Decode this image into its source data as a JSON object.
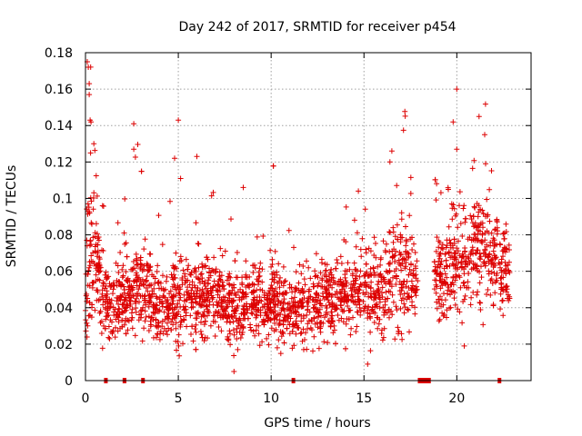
{
  "chart_data": {
    "type": "scatter",
    "title": "Day 242 of 2017, SRMTID for receiver p454",
    "xlabel": "GPS time / hours",
    "ylabel": "SRMTID / TECUs",
    "xlim": [
      0,
      24
    ],
    "ylim": [
      0,
      0.18
    ],
    "grid": true,
    "marker": "+",
    "color": "#dd0000",
    "x_ticks": [
      {
        "value": 0,
        "label": "0"
      },
      {
        "value": 5,
        "label": "5"
      },
      {
        "value": 10,
        "label": "10"
      },
      {
        "value": 15,
        "label": "15"
      },
      {
        "value": 20,
        "label": "20"
      }
    ],
    "y_ticks": [
      {
        "value": 0,
        "label": "0"
      },
      {
        "value": 0.02,
        "label": "0.02"
      },
      {
        "value": 0.04,
        "label": "0.04"
      },
      {
        "value": 0.06,
        "label": "0.06"
      },
      {
        "value": 0.08,
        "label": "0.08"
      },
      {
        "value": 0.1,
        "label": "0.1"
      },
      {
        "value": 0.12,
        "label": "0.12"
      },
      {
        "value": 0.14,
        "label": "0.14"
      },
      {
        "value": 0.16,
        "label": "0.16"
      },
      {
        "value": 0.18,
        "label": "0.18"
      }
    ],
    "envelope": {
      "description": "Approximate per-time distribution of points: center (median) and spread of SRMTID values",
      "hours": [
        0.0,
        0.2,
        0.5,
        1.0,
        1.5,
        2.0,
        2.5,
        3.0,
        3.5,
        4.0,
        5.0,
        6.0,
        7.0,
        8.0,
        9.0,
        10.0,
        11.0,
        12.0,
        13.0,
        14.0,
        15.0,
        15.5,
        16.0,
        16.5,
        17.0,
        17.5,
        18.0,
        18.8,
        19.5,
        20.0,
        20.5,
        21.0,
        21.5,
        22.0,
        22.5,
        22.8
      ],
      "center": [
        0.045,
        0.075,
        0.07,
        0.042,
        0.04,
        0.045,
        0.05,
        0.055,
        0.045,
        0.042,
        0.045,
        0.044,
        0.045,
        0.04,
        0.042,
        0.043,
        0.038,
        0.04,
        0.045,
        0.048,
        0.05,
        0.052,
        0.045,
        0.06,
        0.06,
        0.058,
        0.05,
        0.055,
        0.06,
        0.065,
        0.065,
        0.07,
        0.075,
        0.065,
        0.06,
        0.06
      ],
      "spread": [
        0.025,
        0.05,
        0.035,
        0.02,
        0.018,
        0.02,
        0.022,
        0.025,
        0.02,
        0.022,
        0.025,
        0.022,
        0.02,
        0.02,
        0.02,
        0.02,
        0.018,
        0.02,
        0.02,
        0.02,
        0.025,
        0.025,
        0.02,
        0.04,
        0.035,
        0.025,
        0.015,
        0.02,
        0.025,
        0.03,
        0.03,
        0.03,
        0.035,
        0.025,
        0.025,
        0.02
      ]
    },
    "data_gaps_hours": [
      [
        17.9,
        18.8
      ],
      [
        22.9,
        24
      ]
    ],
    "outliers": [
      {
        "x": 0.1,
        "y": 0.175
      },
      {
        "x": 0.15,
        "y": 0.172
      },
      {
        "x": 0.2,
        "y": 0.163
      },
      {
        "x": 0.2,
        "y": 0.157
      },
      {
        "x": 0.25,
        "y": 0.143
      },
      {
        "x": 0.3,
        "y": 0.142
      },
      {
        "x": 0.45,
        "y": 0.13
      },
      {
        "x": 2.6,
        "y": 0.141
      },
      {
        "x": 2.6,
        "y": 0.127
      },
      {
        "x": 5.0,
        "y": 0.143
      },
      {
        "x": 4.8,
        "y": 0.122
      },
      {
        "x": 6.0,
        "y": 0.123
      },
      {
        "x": 8.0,
        "y": 0.005
      },
      {
        "x": 8.5,
        "y": 0.106
      },
      {
        "x": 14.7,
        "y": 0.104
      },
      {
        "x": 15.2,
        "y": 0.009
      },
      {
        "x": 16.5,
        "y": 0.126
      },
      {
        "x": 16.4,
        "y": 0.12
      },
      {
        "x": 19.8,
        "y": 0.142
      },
      {
        "x": 20.0,
        "y": 0.16
      },
      {
        "x": 20.0,
        "y": 0.127
      },
      {
        "x": 21.2,
        "y": 0.145
      },
      {
        "x": 21.5,
        "y": 0.135
      },
      {
        "x": 20.4,
        "y": 0.019
      }
    ],
    "zero_markers": [
      {
        "x_start": 1.0,
        "x_end": 1.1
      },
      {
        "x_start": 2.0,
        "x_end": 2.2
      },
      {
        "x_start": 3.0,
        "x_end": 3.1
      },
      {
        "x_start": 11.1,
        "x_end": 11.2
      },
      {
        "x_start": 17.9,
        "x_end": 18.6
      },
      {
        "x_start": 22.2,
        "x_end": 22.3
      }
    ]
  }
}
